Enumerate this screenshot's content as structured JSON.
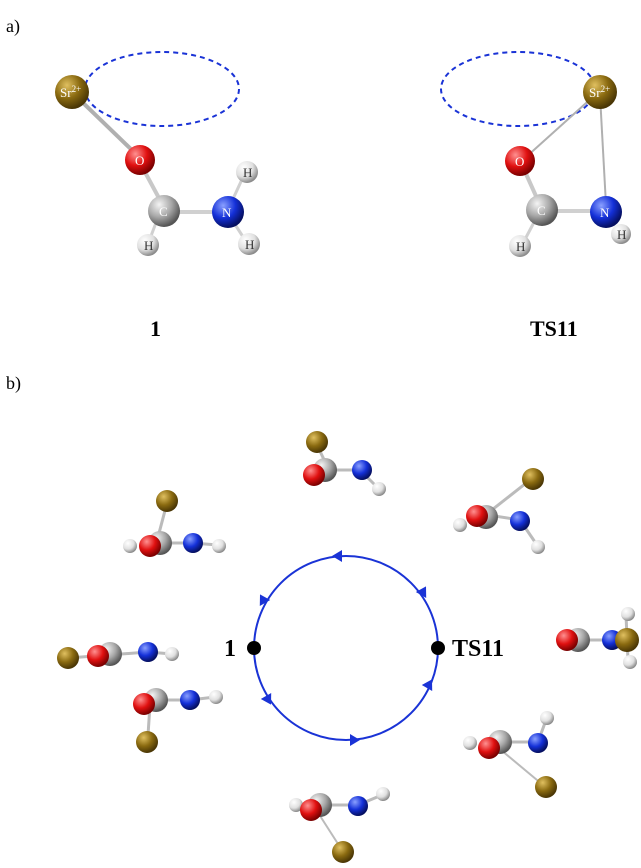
{
  "panel_a": {
    "label": "a)",
    "left_structure": {
      "caption": "1",
      "atoms": {
        "sr": "Sr2+",
        "o": "O",
        "c": "C",
        "n": "N",
        "h1": "H",
        "h2": "H",
        "h3": "H"
      }
    },
    "right_structure": {
      "caption": "TS11",
      "atoms": {
        "sr": "Sr2+",
        "o": "O",
        "c": "C",
        "n": "N",
        "h1": "H",
        "h2": "H"
      }
    }
  },
  "panel_b": {
    "label": "b)",
    "left_point_label": "1",
    "right_point_label": "TS11"
  },
  "colors": {
    "strontium": "#8a6a10",
    "oxygen": "#e01010",
    "carbon": "#a8a8a8",
    "nitrogen": "#1430d8",
    "hydrogen": "#e8e8e8",
    "circle": "#1a33d6",
    "ellipse": "#1a33d6"
  }
}
